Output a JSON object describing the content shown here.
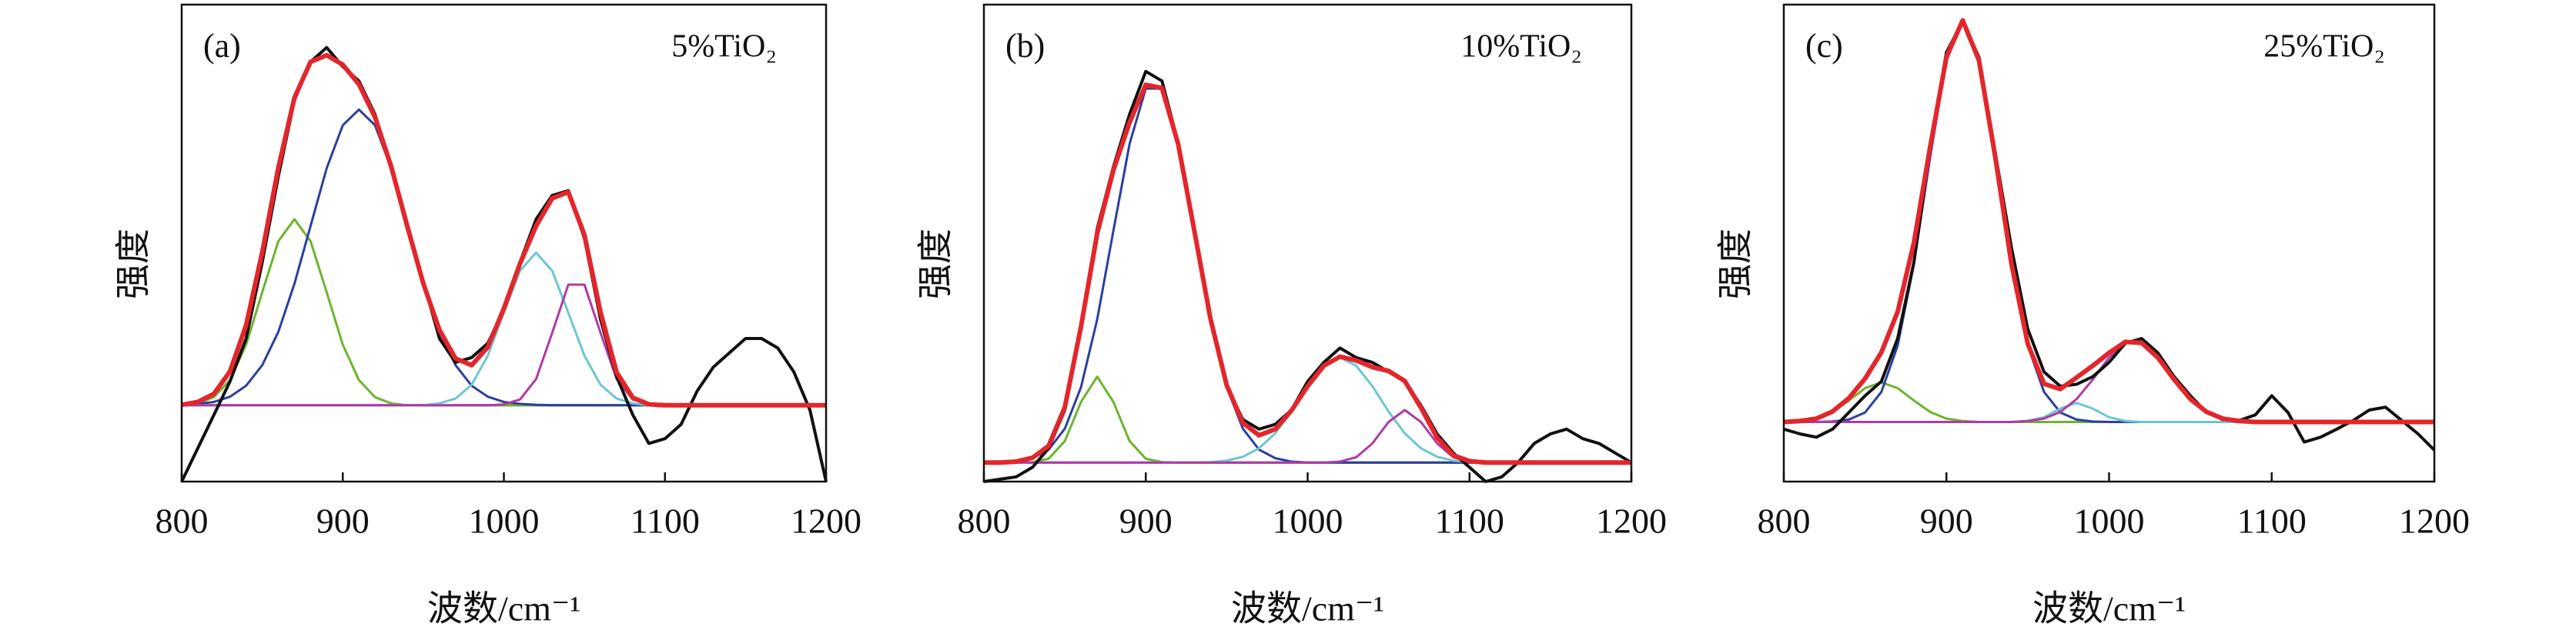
{
  "chart_data": [
    {
      "type": "line",
      "panel_label": "(a)",
      "annotation": "5%TiO₂",
      "x_label": "波数/cm⁻¹",
      "y_label": "强度",
      "xlim": [
        800,
        1200
      ],
      "xticks": [
        800,
        900,
        1000,
        1100,
        1200
      ],
      "ylim": [
        0,
        100
      ],
      "x": [
        800,
        810,
        820,
        830,
        840,
        850,
        860,
        870,
        880,
        890,
        900,
        910,
        920,
        930,
        940,
        950,
        960,
        970,
        980,
        990,
        1000,
        1010,
        1020,
        1030,
        1040,
        1050,
        1060,
        1070,
        1080,
        1090,
        1100,
        1110,
        1120,
        1130,
        1140,
        1150,
        1160,
        1170,
        1180,
        1190,
        1200
      ],
      "series": [
        {
          "color": "#8a3fb0",
          "values": [
            16,
            16,
            16,
            16,
            16,
            16,
            16,
            16,
            16,
            16,
            16,
            16,
            16,
            16,
            16,
            16,
            16,
            16,
            16,
            16,
            16,
            16,
            16,
            16,
            16,
            16,
            16,
            16,
            16,
            16,
            16,
            16,
            16,
            16,
            16,
            16,
            16,
            16,
            16,
            16,
            16
          ]
        },
        {
          "color": "#6cb52d",
          "values": [
            16,
            16.4,
            17.7,
            21.3,
            28.7,
            39.7,
            50.4,
            55,
            50.4,
            39.7,
            28.7,
            21.3,
            17.7,
            16.4,
            16,
            16,
            16,
            16,
            16,
            16,
            16,
            16,
            16,
            16,
            16,
            16,
            16,
            16,
            16,
            16,
            16,
            16,
            16,
            16,
            16,
            16,
            16,
            16,
            16,
            16,
            16
          ]
        },
        {
          "color": "#2b3f9e",
          "values": [
            16.1,
            16.3,
            16.7,
            17.8,
            20.1,
            24.4,
            31.4,
            41.5,
            53.6,
            65.7,
            74.7,
            78,
            74.7,
            65.7,
            53.6,
            41.5,
            31.4,
            24.4,
            20.1,
            17.8,
            16.7,
            16.3,
            16.1,
            16,
            16,
            16,
            16,
            16,
            16,
            16,
            16,
            16,
            16,
            16,
            16,
            16,
            16,
            16,
            16,
            16,
            16
          ]
        },
        {
          "color": "#6cc6d2",
          "values": [
            16,
            16,
            16,
            16,
            16,
            16,
            16,
            16,
            16,
            16,
            16,
            16,
            16,
            16,
            16,
            16,
            16.4,
            17.4,
            20.3,
            26.4,
            35.4,
            44.2,
            48,
            44.2,
            35.4,
            26.4,
            20.3,
            17.4,
            16.4,
            16,
            16,
            16,
            16,
            16,
            16,
            16,
            16,
            16,
            16,
            16,
            16
          ]
        },
        {
          "color": "#b03aa8",
          "values": [
            16,
            16,
            16,
            16,
            16,
            16,
            16,
            16,
            16,
            16,
            16,
            16,
            16,
            16,
            16,
            16,
            16,
            16,
            16,
            16,
            16.2,
            17.2,
            21.5,
            31.2,
            41.3,
            41.3,
            31.2,
            21.5,
            17.2,
            16.2,
            16,
            16,
            16,
            16,
            16,
            16,
            16,
            16,
            16,
            16,
            16
          ]
        },
        {
          "color": "#111111",
          "values": [
            0,
            7,
            14,
            21,
            30,
            46,
            64,
            80,
            88,
            91,
            87,
            84,
            77,
            66,
            53,
            42,
            30,
            25,
            26,
            29,
            36,
            46,
            55,
            60,
            61,
            51,
            34,
            22,
            14,
            8,
            9,
            12,
            19,
            24,
            27,
            30,
            30,
            28,
            23,
            15,
            0
          ]
        },
        {
          "color": "#e3262b",
          "values": [
            16.1,
            16.7,
            18.4,
            23.1,
            32.8,
            48.1,
            65.8,
            80.5,
            88,
            89.4,
            87.4,
            83.3,
            76.4,
            66.1,
            53.6,
            41.5,
            31.8,
            25.8,
            24.4,
            28.2,
            36.3,
            45.7,
            53.6,
            59.4,
            60.7,
            51.7,
            35.5,
            22.9,
            17.6,
            16.2,
            16,
            16,
            16,
            16,
            16,
            16,
            16,
            16,
            16,
            16,
            16
          ]
        }
      ]
    },
    {
      "type": "line",
      "panel_label": "(b)",
      "annotation": "10%TiO₂",
      "x_label": "波数/cm⁻¹",
      "y_label": "强度",
      "xlim": [
        800,
        1200
      ],
      "xticks": [
        800,
        900,
        1000,
        1100,
        1200
      ],
      "ylim": [
        0,
        100
      ],
      "x": [
        800,
        810,
        820,
        830,
        840,
        850,
        860,
        870,
        880,
        890,
        900,
        910,
        920,
        930,
        940,
        950,
        960,
        970,
        980,
        990,
        1000,
        1010,
        1020,
        1030,
        1040,
        1050,
        1060,
        1070,
        1080,
        1090,
        1100,
        1110,
        1120,
        1130,
        1140,
        1150,
        1160,
        1170,
        1180,
        1190,
        1200
      ],
      "series": [
        {
          "color": "#8a3fb0",
          "values": [
            4,
            4,
            4,
            4,
            4,
            4,
            4,
            4,
            4,
            4,
            4,
            4,
            4,
            4,
            4,
            4,
            4,
            4,
            4,
            4,
            4,
            4,
            4,
            4,
            4,
            4,
            4,
            4,
            4,
            4,
            4,
            4,
            4,
            4,
            4,
            4,
            4,
            4,
            4,
            4,
            4
          ]
        },
        {
          "color": "#6cb52d",
          "values": [
            4,
            4,
            4,
            4.1,
            4.8,
            8.5,
            16.7,
            22,
            16.7,
            8.5,
            4.8,
            4.1,
            4,
            4,
            4,
            4,
            4,
            4,
            4,
            4,
            4,
            4,
            4,
            4,
            4,
            4,
            4,
            4,
            4,
            4,
            4,
            4,
            4,
            4,
            4,
            4,
            4,
            4,
            4,
            4,
            4
          ]
        },
        {
          "color": "#2b3f9e",
          "values": [
            4,
            4,
            4.2,
            4.9,
            6.7,
            11.1,
            19.8,
            34,
            52.6,
            70.8,
            82.4,
            82.4,
            70.8,
            52.6,
            34,
            19.8,
            11.1,
            6.7,
            4.9,
            4.2,
            4,
            4,
            4,
            4,
            4,
            4,
            4,
            4,
            4,
            4,
            4,
            4,
            4,
            4,
            4,
            4,
            4,
            4,
            4,
            4,
            4
          ]
        },
        {
          "color": "#6cc6d2",
          "values": [
            4,
            4,
            4,
            4,
            4,
            4,
            4,
            4,
            4,
            4,
            4,
            4,
            4,
            4,
            4.1,
            4.4,
            5.2,
            7,
            10.1,
            14.7,
            20,
            24.3,
            26,
            24.3,
            20,
            14.7,
            10.1,
            7,
            5.2,
            4.4,
            4.1,
            4,
            4,
            4,
            4,
            4,
            4,
            4,
            4,
            4,
            4
          ]
        },
        {
          "color": "#b03aa8",
          "values": [
            4,
            4,
            4,
            4,
            4,
            4,
            4,
            4,
            4,
            4,
            4,
            4,
            4,
            4,
            4,
            4,
            4,
            4,
            4,
            4,
            4,
            4,
            4.2,
            5.1,
            8,
            12.5,
            15,
            12.5,
            8,
            5.1,
            4.2,
            4,
            4,
            4,
            4,
            4,
            4,
            4,
            4,
            4,
            4
          ]
        },
        {
          "color": "#111111",
          "values": [
            0,
            0.5,
            1,
            3,
            7,
            15,
            33,
            53,
            66,
            77,
            86,
            84,
            71,
            52,
            34,
            20,
            13,
            11,
            12,
            15,
            21,
            25,
            28,
            26,
            25,
            23,
            21,
            16,
            10,
            6,
            3,
            0,
            1,
            4,
            8,
            10,
            11,
            9,
            8,
            6,
            4
          ]
        },
        {
          "color": "#e3262b",
          "values": [
            4,
            4,
            4.2,
            5,
            7.5,
            15.6,
            32.5,
            52,
            65.3,
            75.3,
            83.2,
            82.5,
            70.8,
            52.6,
            34.1,
            20.2,
            12.3,
            9.7,
            11,
            14.9,
            20,
            24.3,
            26.2,
            25.4,
            24,
            23.2,
            21.1,
            15.5,
            9.2,
            5.5,
            4.3,
            4,
            4,
            4,
            4,
            4,
            4,
            4,
            4,
            4,
            4
          ]
        }
      ]
    },
    {
      "type": "line",
      "panel_label": "(c)",
      "annotation": "25%TiO₂",
      "x_label": "波数/cm⁻¹",
      "y_label": "强度",
      "xlim": [
        800,
        1200
      ],
      "xticks": [
        800,
        900,
        1000,
        1100,
        1200
      ],
      "ylim": [
        0,
        100
      ],
      "x": [
        800,
        810,
        820,
        830,
        840,
        850,
        860,
        870,
        880,
        890,
        900,
        910,
        920,
        930,
        940,
        950,
        960,
        970,
        980,
        990,
        1000,
        1010,
        1020,
        1030,
        1040,
        1050,
        1060,
        1070,
        1080,
        1090,
        1100,
        1110,
        1120,
        1130,
        1140,
        1150,
        1160,
        1170,
        1180,
        1190,
        1200
      ],
      "series": [
        {
          "color": "#8a3fb0",
          "values": [
            12.5,
            12.5,
            12.5,
            12.5,
            12.5,
            12.5,
            12.5,
            12.5,
            12.5,
            12.5,
            12.5,
            12.5,
            12.5,
            12.5,
            12.5,
            12.5,
            12.5,
            12.5,
            12.5,
            12.5,
            12.5,
            12.5,
            12.5,
            12.5,
            12.5,
            12.5,
            12.5,
            12.5,
            12.5,
            12.5,
            12.5,
            12.5,
            12.5,
            12.5,
            12.5,
            12.5,
            12.5,
            12.5,
            12.5,
            12.5,
            12.5
          ]
        },
        {
          "color": "#6cb52d",
          "values": [
            12.5,
            12.7,
            13.2,
            14.6,
            17,
            19.6,
            20.8,
            19.6,
            17,
            14.6,
            13.2,
            12.7,
            12.5,
            12.5,
            12.5,
            12.5,
            12.5,
            12.5,
            12.5,
            12.5,
            12.5,
            12.5,
            12.5,
            12.5,
            12.5,
            12.5,
            12.5,
            12.5,
            12.5,
            12.5,
            12.5,
            12.5,
            12.5,
            12.5,
            12.5,
            12.5,
            12.5,
            12.5,
            12.5,
            12.5,
            12.5
          ]
        },
        {
          "color": "#2b3f9e",
          "values": [
            12.5,
            12.5,
            12.5,
            12.6,
            13,
            14.5,
            18.8,
            28.5,
            45.6,
            68.1,
            88.3,
            96.5,
            88.3,
            68.1,
            45.6,
            28.5,
            18.8,
            14.5,
            13,
            12.6,
            12.5,
            12.5,
            12.5,
            12.5,
            12.5,
            12.5,
            12.5,
            12.5,
            12.5,
            12.5,
            12.5,
            12.5,
            12.5,
            12.5,
            12.5,
            12.5,
            12.5,
            12.5,
            12.5,
            12.5,
            12.5
          ]
        },
        {
          "color": "#6cc6d2",
          "values": [
            12.5,
            12.5,
            12.5,
            12.5,
            12.5,
            12.5,
            12.5,
            12.5,
            12.5,
            12.5,
            12.5,
            12.5,
            12.5,
            12.5,
            12.5,
            12.7,
            13.5,
            15.3,
            16.5,
            15.3,
            13.5,
            12.7,
            12.5,
            12.5,
            12.5,
            12.5,
            12.5,
            12.5,
            12.5,
            12.5,
            12.5,
            12.5,
            12.5,
            12.5,
            12.5,
            12.5,
            12.5,
            12.5,
            12.5,
            12.5,
            12.5
          ]
        },
        {
          "color": "#b03aa8",
          "values": [
            12.5,
            12.5,
            12.5,
            12.5,
            12.5,
            12.5,
            12.5,
            12.5,
            12.5,
            12.5,
            12.5,
            12.5,
            12.5,
            12.5,
            12.5,
            12.7,
            13.2,
            14.6,
            17.3,
            21.4,
            26,
            29.1,
            29.1,
            26,
            21.4,
            17.3,
            14.6,
            13.2,
            12.7,
            12.5,
            12.5,
            12.5,
            12.5,
            12.5,
            12.5,
            12.5,
            12.5,
            12.5,
            12.5,
            12.5,
            12.5
          ]
        },
        {
          "color": "#111111",
          "values": [
            11,
            10,
            9.3,
            11,
            14.5,
            18,
            21,
            30,
            46,
            70,
            90,
            96.5,
            89,
            69,
            49,
            32,
            23,
            20,
            20.4,
            22,
            25,
            29,
            30,
            27,
            22,
            18,
            14.5,
            13,
            12.8,
            14,
            18,
            14.5,
            8.3,
            9.3,
            11,
            12.8,
            15,
            15.6,
            12.8,
            10,
            6.6
          ]
        },
        {
          "color": "#e3262b",
          "values": [
            12.5,
            12.7,
            13.2,
            14.7,
            17.5,
            21.6,
            27.1,
            35.6,
            50.1,
            70.2,
            89,
            96.7,
            88.3,
            68.1,
            45.6,
            28.9,
            20.5,
            19.4,
            21.8,
            24.3,
            27,
            29.3,
            29.1,
            26,
            21.4,
            17.3,
            14.6,
            13.2,
            12.7,
            12.5,
            12.5,
            12.5,
            12.5,
            12.5,
            12.5,
            12.5,
            12.5,
            12.5,
            12.5,
            12.5,
            12.5
          ]
        }
      ]
    }
  ]
}
